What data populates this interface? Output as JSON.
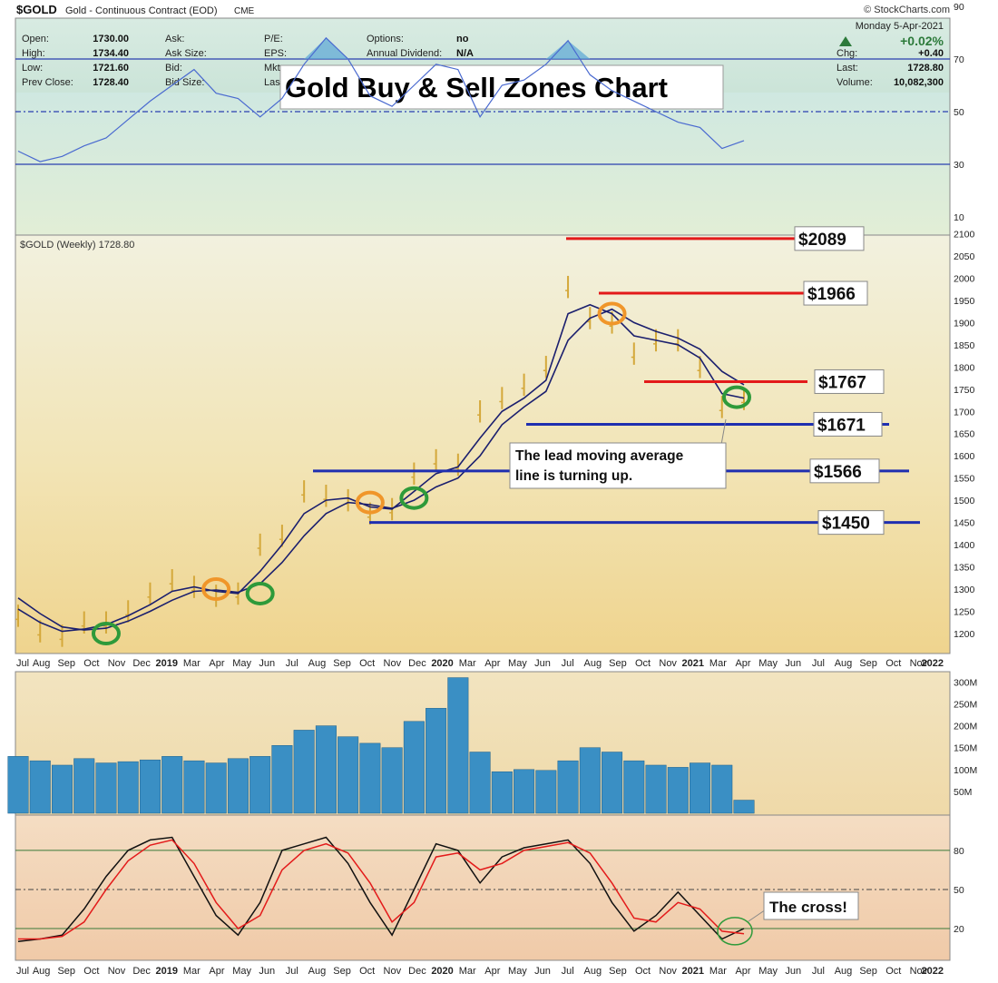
{
  "header": {
    "symbol": "$GOLD",
    "name": "Gold - Continuous Contract (EOD)",
    "exchange": "CME",
    "brand": "© StockCharts.com",
    "date": "Monday  5-Apr-2021",
    "change_pct": "+0.02%",
    "fields": [
      {
        "label": "Open:",
        "value": "1730.00"
      },
      {
        "label": "High:",
        "value": "1734.40"
      },
      {
        "label": "Low:",
        "value": "1721.60"
      },
      {
        "label": "Prev Close:",
        "value": "1728.40"
      }
    ],
    "fields2": [
      "Ask:",
      "Ask Size:",
      "Bid:",
      "Bid Size:"
    ],
    "fields3": [
      "P/E:",
      "EPS:",
      "Mkt",
      "Las"
    ],
    "fields4": [
      {
        "label": "Options:",
        "value": "no"
      },
      {
        "label": "Annual Dividend:",
        "value": "N/A"
      }
    ],
    "right": [
      {
        "label": "Chg:",
        "value": "+0.40"
      },
      {
        "label": "Last:",
        "value": "1728.80"
      },
      {
        "label": "Volume:",
        "value": "10,082,300"
      }
    ]
  },
  "chart_title": "Gold Buy & Sell Zones Chart",
  "chart_data": [
    {
      "type": "line",
      "panel": "RSI",
      "x": [
        "Jul 2018",
        "Aug",
        "Sep",
        "Oct",
        "Nov",
        "Dec",
        "Jan 2019",
        "Feb",
        "Mar",
        "Apr",
        "May",
        "Jun",
        "Jul",
        "Aug",
        "Sep",
        "Oct",
        "Nov",
        "Dec",
        "Jan 2020",
        "Feb",
        "Mar",
        "Apr",
        "May",
        "Jun",
        "Jul",
        "Aug",
        "Sep",
        "Oct",
        "Nov",
        "Dec",
        "Jan 2021",
        "Feb",
        "Mar",
        "Apr"
      ],
      "series": [
        {
          "values": [
            35,
            31,
            33,
            37,
            40,
            47,
            54,
            60,
            66,
            57,
            55,
            48,
            55,
            68,
            78,
            70,
            56,
            52,
            60,
            68,
            66,
            48,
            60,
            62,
            68,
            77,
            64,
            58,
            54,
            50,
            46,
            44,
            36,
            39
          ]
        }
      ],
      "ylim": [
        0,
        100
      ],
      "yticks": [
        10,
        30,
        50,
        70,
        90
      ],
      "reference_lines": [
        30,
        50,
        70
      ]
    },
    {
      "type": "line",
      "panel": "Price",
      "legend": "$GOLD (Weekly) 1728.80",
      "x": [
        "Jul 2018",
        "Aug",
        "Sep",
        "Oct",
        "Nov",
        "Dec",
        "Jan 2019",
        "Feb",
        "Mar",
        "Apr",
        "May",
        "Jun",
        "Jul",
        "Aug",
        "Sep",
        "Oct",
        "Nov",
        "Dec",
        "Jan 2020",
        "Feb",
        "Mar",
        "Apr",
        "May",
        "Jun",
        "Jul",
        "Aug",
        "Sep",
        "Oct",
        "Nov",
        "Dec",
        "Jan 2021",
        "Feb",
        "Mar",
        "Apr"
      ],
      "series": [
        {
          "values": [
            1240,
            1205,
            1195,
            1225,
            1225,
            1250,
            1290,
            1320,
            1305,
            1285,
            1290,
            1400,
            1420,
            1520,
            1510,
            1500,
            1470,
            1480,
            1560,
            1590,
            1580,
            1700,
            1730,
            1760,
            1800,
            1980,
            1910,
            1900,
            1830,
            1860,
            1860,
            1800,
            1710,
            1728
          ]
        },
        {
          "values": [
            1255,
            1225,
            1205,
            1210,
            1220,
            1240,
            1265,
            1295,
            1305,
            1295,
            1290,
            1340,
            1400,
            1470,
            1500,
            1505,
            1485,
            1480,
            1520,
            1560,
            1575,
            1640,
            1700,
            1730,
            1770,
            1920,
            1940,
            1920,
            1870,
            1860,
            1850,
            1820,
            1740,
            1730
          ]
        },
        {
          "values": [
            1280,
            1245,
            1215,
            1208,
            1212,
            1228,
            1250,
            1275,
            1295,
            1298,
            1293,
            1312,
            1360,
            1420,
            1470,
            1495,
            1490,
            1482,
            1500,
            1530,
            1550,
            1600,
            1670,
            1710,
            1745,
            1860,
            1910,
            1930,
            1900,
            1880,
            1865,
            1840,
            1790,
            1760
          ]
        }
      ],
      "ylim": [
        1150,
        2110
      ],
      "yticks": [
        1200,
        1250,
        1300,
        1350,
        1400,
        1450,
        1500,
        1550,
        1600,
        1650,
        1700,
        1750,
        1800,
        1850,
        1900,
        1950,
        2000,
        2050,
        2100
      ],
      "levels": [
        {
          "label": "$2089",
          "value": 2089,
          "type": "sell",
          "color": "#e31a1a"
        },
        {
          "label": "$1966",
          "value": 1966,
          "type": "sell",
          "color": "#e31a1a"
        },
        {
          "label": "$1767",
          "value": 1767,
          "type": "sell",
          "color": "#e31a1a"
        },
        {
          "label": "$1671",
          "value": 1671,
          "type": "buy",
          "color": "#1f2fb0"
        },
        {
          "label": "$1566",
          "value": 1566,
          "type": "buy",
          "color": "#1f2fb0"
        },
        {
          "label": "$1450",
          "value": 1450,
          "type": "buy",
          "color": "#1f2fb0"
        }
      ],
      "annotation": "The lead moving average line is turning up.",
      "annotation_lines": [
        "The lead moving average",
        "line is turning up."
      ]
    },
    {
      "type": "bar",
      "panel": "Volume",
      "ylim": [
        0,
        320
      ],
      "yticks": [
        "50M",
        "100M",
        "150M",
        "200M",
        "250M",
        "300M"
      ],
      "ytick_values": [
        50,
        100,
        150,
        200,
        250,
        300
      ],
      "values": [
        130,
        120,
        110,
        125,
        115,
        118,
        122,
        130,
        120,
        115,
        125,
        130,
        155,
        190,
        200,
        175,
        160,
        150,
        210,
        240,
        310,
        140,
        95,
        100,
        98,
        120,
        150,
        140,
        120,
        110,
        105,
        115,
        110,
        30
      ],
      "color": "#3a8fc4"
    },
    {
      "type": "line",
      "panel": "Stochastic",
      "ylim": [
        0,
        100
      ],
      "yticks": [
        20,
        50,
        80
      ],
      "reference_lines": [
        20,
        50,
        80
      ],
      "series": [
        {
          "values": [
            10,
            12,
            15,
            35,
            60,
            80,
            88,
            90,
            60,
            30,
            15,
            40,
            80,
            85,
            90,
            70,
            40,
            15,
            50,
            85,
            80,
            55,
            75,
            82,
            85,
            88,
            70,
            40,
            18,
            30,
            48,
            30,
            12,
            20
          ],
          "color": "#111111"
        },
        {
          "values": [
            12,
            12,
            14,
            25,
            50,
            72,
            84,
            88,
            70,
            40,
            20,
            30,
            65,
            80,
            85,
            78,
            55,
            25,
            40,
            75,
            78,
            65,
            70,
            80,
            83,
            86,
            78,
            55,
            28,
            25,
            40,
            35,
            18,
            16
          ],
          "color": "#e31a1a"
        }
      ],
      "annotation": "The cross!"
    }
  ],
  "x_axis_labels": [
    "Jul",
    "Aug",
    "Sep",
    "Oct",
    "Nov",
    "Dec",
    "2019",
    "Mar",
    "Apr",
    "May",
    "Jun",
    "Jul",
    "Aug",
    "Sep",
    "Oct",
    "Nov",
    "Dec",
    "2020",
    "Mar",
    "Apr",
    "May",
    "Jun",
    "Jul",
    "Aug",
    "Sep",
    "Oct",
    "Nov",
    "2021",
    "Mar",
    "Apr",
    "May",
    "Jun",
    "Jul",
    "Aug",
    "Sep",
    "Oct",
    "Nov",
    "2022"
  ]
}
